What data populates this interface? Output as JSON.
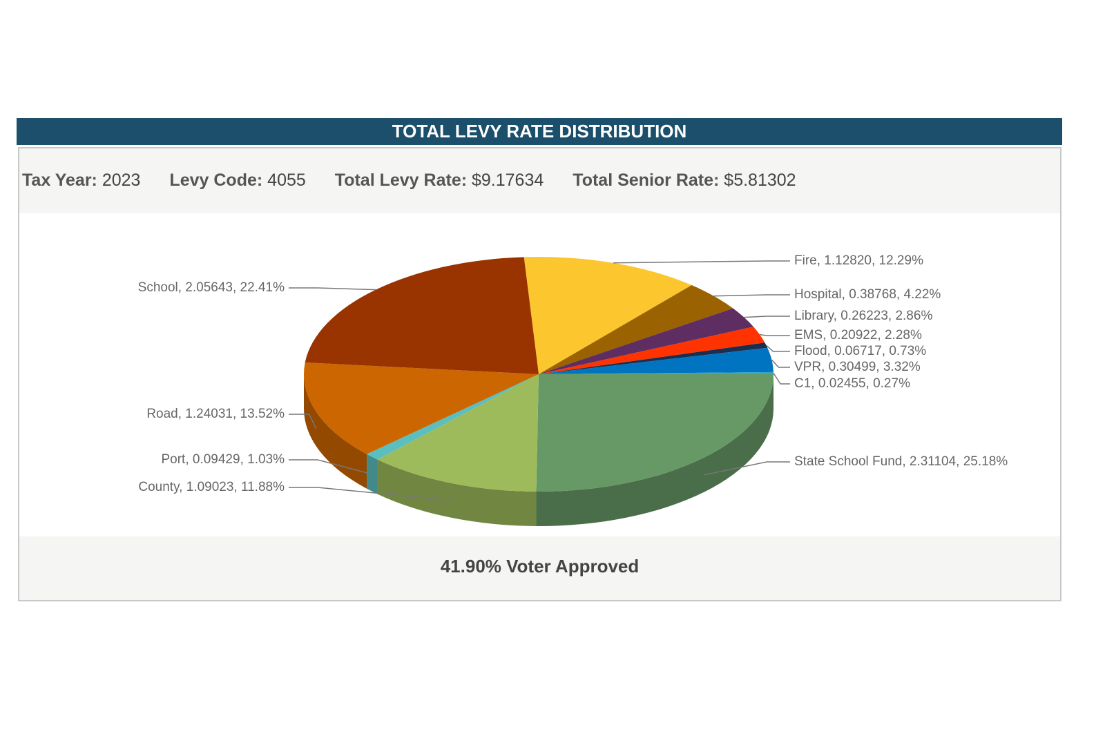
{
  "header": {
    "title": "TOTAL LEVY RATE DISTRIBUTION"
  },
  "info": [
    {
      "label": "Tax Year:",
      "value": "2023"
    },
    {
      "label": "Levy Code:",
      "value": "4055"
    },
    {
      "label": "Total Levy Rate:",
      "value": "$9.17634"
    },
    {
      "label": "Total Senior Rate:",
      "value": "$5.81302"
    }
  ],
  "chart_data": {
    "type": "pie",
    "categories": [
      "Fire, 1.12820, 12.29%",
      "Hospital, 0.38768, 4.22%",
      "Library, 0.26223, 2.86%",
      "EMS, 0.20922, 2.28%",
      "Flood, 0.06717, 0.73%",
      "VPR, 0.30499, 3.32%",
      "C1, 0.02455, 0.27%",
      "State School Fund, 2.31104, 25.18%",
      "County, 1.09023, 11.88%",
      "Port, 0.09429, 1.03%",
      "Road, 1.24031, 13.52%",
      "School, 2.05643, 22.41%"
    ],
    "values": [
      1.1282,
      0.38768,
      0.26223,
      0.20922,
      0.06717,
      0.30499,
      0.02455,
      2.31104,
      1.09023,
      0.09429,
      1.24031,
      2.05643
    ],
    "colors": [
      "#fcc62f",
      "#9a6200",
      "#5e2d62",
      "#ff3300",
      "#1b2e4e",
      "#0074c1",
      "#29a3c7",
      "#669966",
      "#9dbb5a",
      "#5cbfbf",
      "#cc6600",
      "#993300"
    ]
  },
  "footer": {
    "text": "41.90% Voter Approved"
  }
}
